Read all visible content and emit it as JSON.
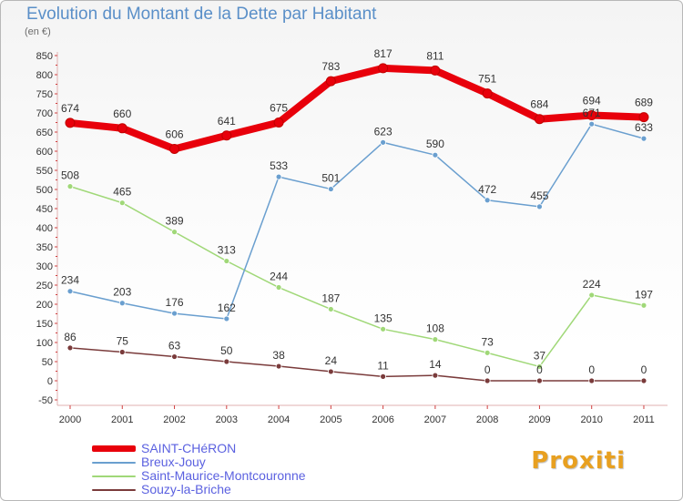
{
  "chart_data": {
    "type": "line",
    "title": "Evolution du Montant de la Dette par Habitant",
    "subtitle": "(en €)",
    "xlabel": "",
    "ylabel": "",
    "x": [
      "2000",
      "2001",
      "2002",
      "2003",
      "2004",
      "2005",
      "2006",
      "2007",
      "2008",
      "2009",
      "2010",
      "2011"
    ],
    "ylim": [
      -50,
      850
    ],
    "yticks": [
      -50,
      0,
      50,
      100,
      150,
      200,
      250,
      300,
      350,
      400,
      450,
      500,
      550,
      600,
      650,
      700,
      750,
      800,
      850
    ],
    "grid": false,
    "legend_position": "bottom-left",
    "series": [
      {
        "name": "SAINT-CHéRON",
        "color": "#e8000b",
        "values": [
          674,
          660,
          606,
          641,
          675,
          783,
          817,
          811,
          751,
          684,
          694,
          689
        ]
      },
      {
        "name": "Breux-Jouy",
        "color": "#6a9fcf",
        "values": [
          234,
          203,
          176,
          162,
          533,
          501,
          623,
          590,
          472,
          455,
          671,
          633
        ]
      },
      {
        "name": "Saint-Maurice-Montcouronne",
        "color": "#a0d878",
        "values": [
          508,
          465,
          389,
          313,
          244,
          187,
          135,
          108,
          73,
          37,
          224,
          197
        ]
      },
      {
        "name": "Souzy-la-Briche",
        "color": "#7a3b3b",
        "values": [
          86,
          75,
          63,
          50,
          38,
          24,
          11,
          14,
          0,
          0,
          0,
          0
        ]
      }
    ]
  },
  "brand": {
    "text": "Proxiti"
  }
}
